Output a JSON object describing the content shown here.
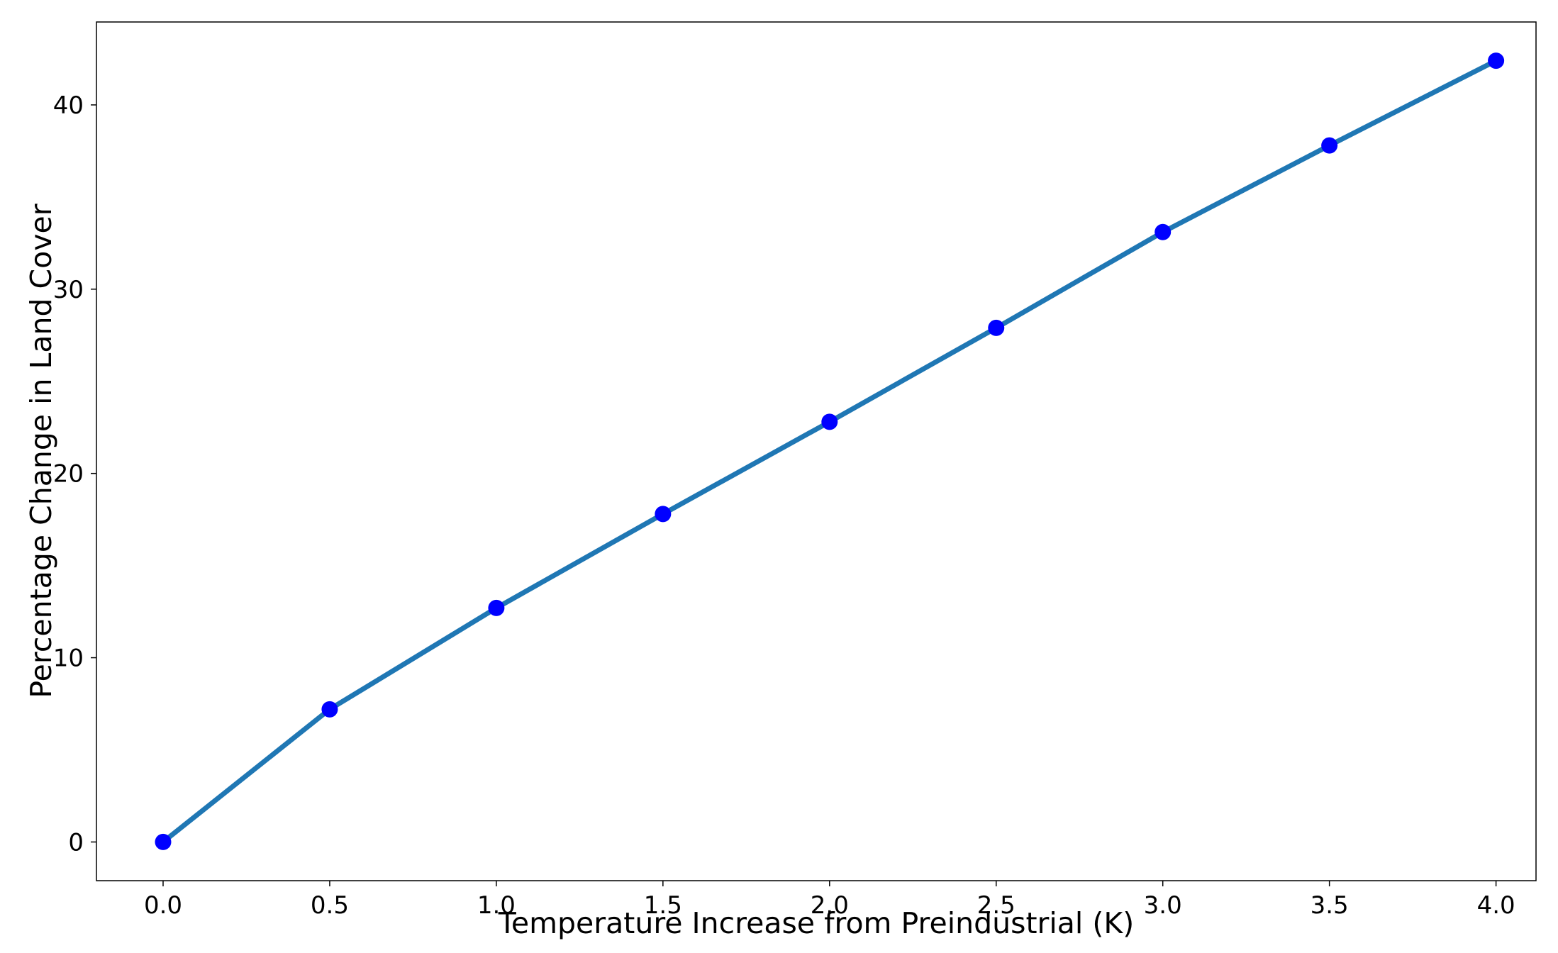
{
  "chart_data": {
    "type": "line",
    "title": "",
    "xlabel": "Temperature Increase from Preindustrial (K)",
    "ylabel": "Percentage Change in Land Cover",
    "xlim": [
      -0.2,
      4.12
    ],
    "ylim": [
      -2.1,
      44.5
    ],
    "grid": false,
    "legend": "none",
    "x_ticks": [
      0.0,
      0.5,
      1.0,
      1.5,
      2.0,
      2.5,
      3.0,
      3.5,
      4.0
    ],
    "x_tick_labels": [
      "0.0",
      "0.5",
      "1.0",
      "1.5",
      "2.0",
      "2.5",
      "3.0",
      "3.5",
      "4.0"
    ],
    "y_ticks": [
      0,
      10,
      20,
      30,
      40
    ],
    "y_tick_labels": [
      "0",
      "10",
      "20",
      "30",
      "40"
    ],
    "series": [
      {
        "x": [
          0.0,
          0.5,
          1.0,
          1.5,
          2.0,
          2.5,
          3.0,
          3.5,
          4.0
        ],
        "y": [
          0.0,
          7.2,
          12.7,
          17.8,
          22.8,
          27.9,
          33.1,
          37.8,
          42.4
        ],
        "line_color": "#1f77b4",
        "marker_color": "#0000ff"
      }
    ]
  }
}
